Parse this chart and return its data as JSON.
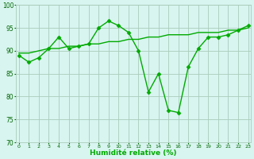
{
  "x": [
    0,
    1,
    2,
    3,
    4,
    5,
    6,
    7,
    8,
    9,
    10,
    11,
    12,
    13,
    14,
    15,
    16,
    17,
    18,
    19,
    20,
    21,
    22,
    23
  ],
  "y_main": [
    89,
    87.5,
    88.5,
    90.5,
    93,
    90.5,
    91,
    91.5,
    95,
    96.5,
    95.5,
    94,
    90,
    81,
    85,
    77,
    76.5,
    86.5,
    90.5,
    93,
    93,
    93.5,
    94.5,
    95.5
  ],
  "y_trend": [
    89.5,
    89.5,
    90.0,
    90.5,
    90.5,
    91.0,
    91.0,
    91.5,
    91.5,
    92.0,
    92.0,
    92.5,
    92.5,
    93.0,
    93.0,
    93.5,
    93.5,
    93.5,
    94.0,
    94.0,
    94.0,
    94.5,
    94.5,
    95.0
  ],
  "background": "#d8f5f0",
  "grid_color": "#aaccbb",
  "line_color": "#00aa00",
  "xlabel": "Humidité relative (%)",
  "ylim": [
    70,
    100
  ],
  "yticks": [
    70,
    75,
    80,
    85,
    90,
    95,
    100
  ],
  "xticks": [
    0,
    1,
    2,
    3,
    4,
    5,
    6,
    7,
    8,
    9,
    10,
    11,
    12,
    13,
    14,
    15,
    16,
    17,
    18,
    19,
    20,
    21,
    22,
    23
  ],
  "figsize": [
    3.2,
    2.0
  ],
  "dpi": 100
}
